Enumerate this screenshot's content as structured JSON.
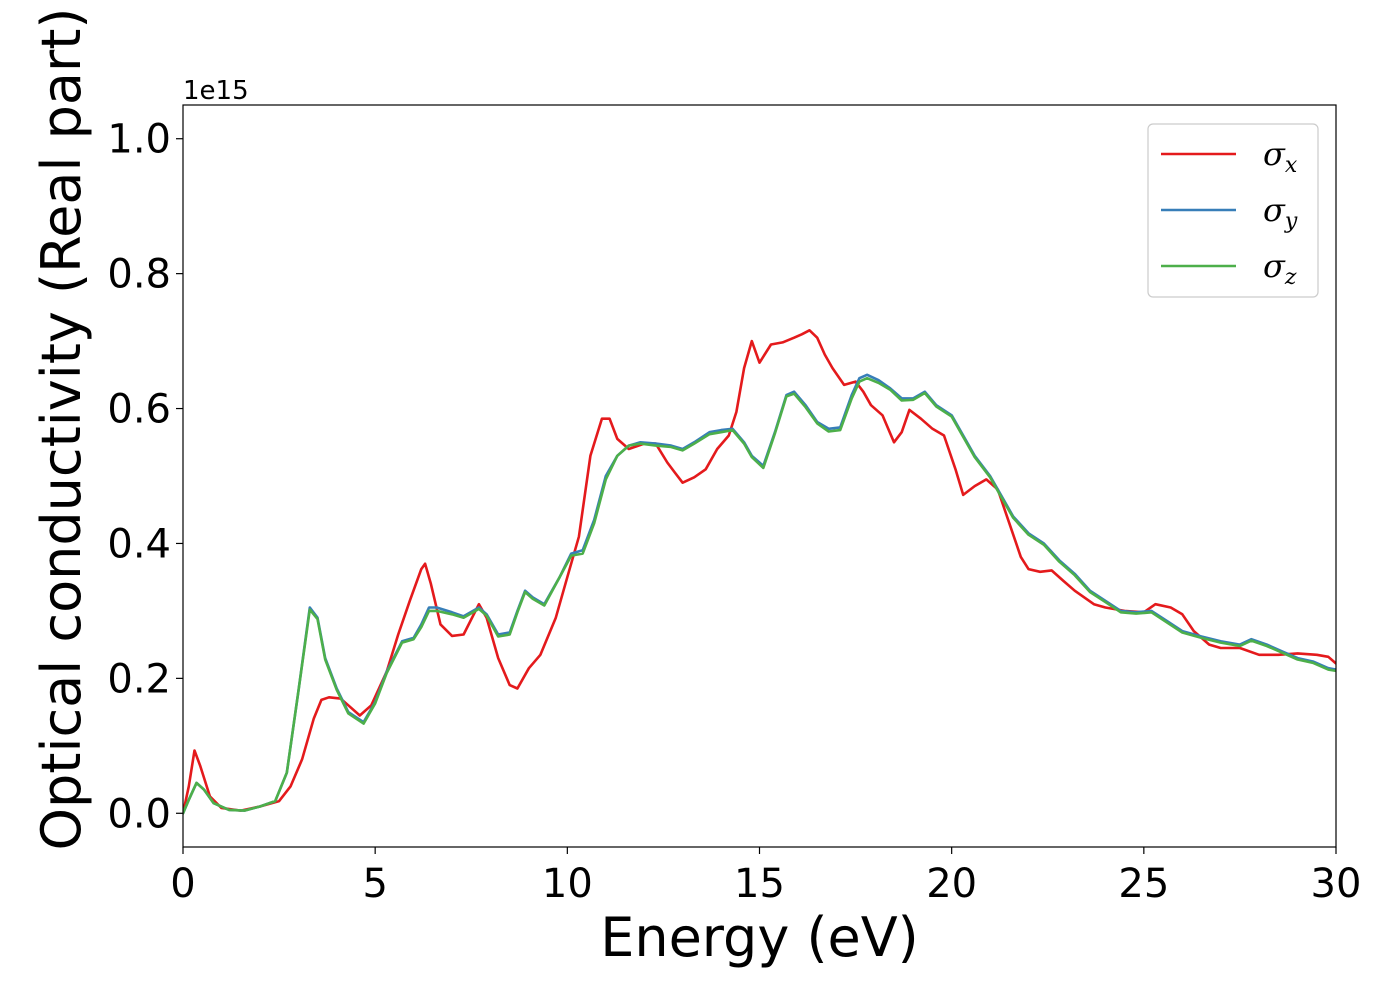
{
  "chart_data": {
    "type": "line",
    "xlabel": "Energy (eV)",
    "ylabel": "Optical conductivity (Real part)",
    "y_offset_label": "1e15",
    "xlim": [
      0,
      30
    ],
    "ylim": [
      -0.05,
      1.05
    ],
    "xticks": [
      0,
      5,
      10,
      15,
      20,
      25,
      30
    ],
    "yticks": [
      0.0,
      0.2,
      0.4,
      0.6,
      0.8,
      1.0
    ],
    "xtick_labels": [
      "0",
      "5",
      "10",
      "15",
      "20",
      "25",
      "30"
    ],
    "ytick_labels": [
      "0.0",
      "0.2",
      "0.4",
      "0.6",
      "0.8",
      "1.0"
    ],
    "grid": false,
    "legend_position": "top-right",
    "series": [
      {
        "name": "σ",
        "subscript": "x",
        "color": "#e41a1c",
        "points": [
          [
            0,
            0
          ],
          [
            0.15,
            0.04
          ],
          [
            0.3,
            0.093
          ],
          [
            0.45,
            0.07
          ],
          [
            0.7,
            0.025
          ],
          [
            1,
            0.008
          ],
          [
            1.5,
            0.004
          ],
          [
            2,
            0.01
          ],
          [
            2.5,
            0.018
          ],
          [
            2.8,
            0.04
          ],
          [
            3.1,
            0.08
          ],
          [
            3.4,
            0.14
          ],
          [
            3.6,
            0.168
          ],
          [
            3.8,
            0.172
          ],
          [
            4.1,
            0.17
          ],
          [
            4.3,
            0.16
          ],
          [
            4.6,
            0.145
          ],
          [
            4.9,
            0.16
          ],
          [
            5.3,
            0.21
          ],
          [
            5.6,
            0.265
          ],
          [
            5.9,
            0.315
          ],
          [
            6.2,
            0.362
          ],
          [
            6.3,
            0.37
          ],
          [
            6.45,
            0.34
          ],
          [
            6.7,
            0.28
          ],
          [
            7.0,
            0.263
          ],
          [
            7.3,
            0.265
          ],
          [
            7.7,
            0.31
          ],
          [
            7.9,
            0.29
          ],
          [
            8.2,
            0.23
          ],
          [
            8.5,
            0.19
          ],
          [
            8.7,
            0.185
          ],
          [
            9.0,
            0.215
          ],
          [
            9.3,
            0.235
          ],
          [
            9.7,
            0.29
          ],
          [
            10.0,
            0.35
          ],
          [
            10.3,
            0.41
          ],
          [
            10.6,
            0.53
          ],
          [
            10.9,
            0.585
          ],
          [
            11.1,
            0.585
          ],
          [
            11.3,
            0.555
          ],
          [
            11.6,
            0.54
          ],
          [
            12.0,
            0.548
          ],
          [
            12.3,
            0.548
          ],
          [
            12.6,
            0.52
          ],
          [
            12.8,
            0.505
          ],
          [
            13.0,
            0.49
          ],
          [
            13.3,
            0.498
          ],
          [
            13.6,
            0.51
          ],
          [
            13.9,
            0.54
          ],
          [
            14.2,
            0.56
          ],
          [
            14.4,
            0.595
          ],
          [
            14.6,
            0.66
          ],
          [
            14.8,
            0.7
          ],
          [
            15.0,
            0.668
          ],
          [
            15.3,
            0.695
          ],
          [
            15.6,
            0.698
          ],
          [
            15.9,
            0.705
          ],
          [
            16.1,
            0.71
          ],
          [
            16.3,
            0.716
          ],
          [
            16.5,
            0.705
          ],
          [
            16.7,
            0.68
          ],
          [
            16.9,
            0.66
          ],
          [
            17.2,
            0.635
          ],
          [
            17.5,
            0.64
          ],
          [
            17.7,
            0.625
          ],
          [
            17.9,
            0.605
          ],
          [
            18.2,
            0.59
          ],
          [
            18.5,
            0.55
          ],
          [
            18.7,
            0.565
          ],
          [
            18.9,
            0.598
          ],
          [
            19.2,
            0.585
          ],
          [
            19.5,
            0.57
          ],
          [
            19.8,
            0.56
          ],
          [
            20.1,
            0.51
          ],
          [
            20.3,
            0.472
          ],
          [
            20.6,
            0.485
          ],
          [
            20.9,
            0.495
          ],
          [
            21.2,
            0.48
          ],
          [
            21.5,
            0.43
          ],
          [
            21.8,
            0.38
          ],
          [
            22.0,
            0.362
          ],
          [
            22.3,
            0.358
          ],
          [
            22.6,
            0.36
          ],
          [
            22.9,
            0.345
          ],
          [
            23.2,
            0.33
          ],
          [
            23.7,
            0.31
          ],
          [
            24.0,
            0.305
          ],
          [
            24.5,
            0.3
          ],
          [
            25.0,
            0.298
          ],
          [
            25.3,
            0.31
          ],
          [
            25.7,
            0.305
          ],
          [
            26.0,
            0.295
          ],
          [
            26.3,
            0.27
          ],
          [
            26.7,
            0.25
          ],
          [
            27.0,
            0.245
          ],
          [
            27.5,
            0.245
          ],
          [
            28.0,
            0.235
          ],
          [
            28.5,
            0.235
          ],
          [
            29.0,
            0.237
          ],
          [
            29.5,
            0.235
          ],
          [
            29.8,
            0.232
          ],
          [
            30.0,
            0.222
          ]
        ]
      },
      {
        "name": "σ",
        "subscript": "y",
        "color": "#377eb8",
        "points": [
          [
            0,
            0
          ],
          [
            0.15,
            0.02
          ],
          [
            0.35,
            0.045
          ],
          [
            0.55,
            0.035
          ],
          [
            0.8,
            0.015
          ],
          [
            1.2,
            0.005
          ],
          [
            1.6,
            0.004
          ],
          [
            2.0,
            0.01
          ],
          [
            2.4,
            0.018
          ],
          [
            2.7,
            0.06
          ],
          [
            3.0,
            0.18
          ],
          [
            3.3,
            0.305
          ],
          [
            3.5,
            0.29
          ],
          [
            3.7,
            0.23
          ],
          [
            4.0,
            0.185
          ],
          [
            4.3,
            0.15
          ],
          [
            4.7,
            0.135
          ],
          [
            5.0,
            0.165
          ],
          [
            5.3,
            0.21
          ],
          [
            5.7,
            0.255
          ],
          [
            6.0,
            0.26
          ],
          [
            6.2,
            0.28
          ],
          [
            6.4,
            0.305
          ],
          [
            6.6,
            0.305
          ],
          [
            7.0,
            0.298
          ],
          [
            7.3,
            0.292
          ],
          [
            7.7,
            0.305
          ],
          [
            7.9,
            0.295
          ],
          [
            8.2,
            0.265
          ],
          [
            8.5,
            0.268
          ],
          [
            8.7,
            0.3
          ],
          [
            8.9,
            0.33
          ],
          [
            9.1,
            0.32
          ],
          [
            9.4,
            0.31
          ],
          [
            9.8,
            0.35
          ],
          [
            10.1,
            0.385
          ],
          [
            10.4,
            0.39
          ],
          [
            10.7,
            0.435
          ],
          [
            11.0,
            0.5
          ],
          [
            11.3,
            0.53
          ],
          [
            11.6,
            0.545
          ],
          [
            11.9,
            0.55
          ],
          [
            12.3,
            0.548
          ],
          [
            12.7,
            0.545
          ],
          [
            13.0,
            0.54
          ],
          [
            13.3,
            0.55
          ],
          [
            13.7,
            0.565
          ],
          [
            14.0,
            0.568
          ],
          [
            14.3,
            0.57
          ],
          [
            14.6,
            0.55
          ],
          [
            14.8,
            0.53
          ],
          [
            15.1,
            0.515
          ],
          [
            15.4,
            0.565
          ],
          [
            15.7,
            0.62
          ],
          [
            15.9,
            0.625
          ],
          [
            16.2,
            0.605
          ],
          [
            16.5,
            0.58
          ],
          [
            16.8,
            0.57
          ],
          [
            17.1,
            0.572
          ],
          [
            17.4,
            0.62
          ],
          [
            17.6,
            0.645
          ],
          [
            17.8,
            0.65
          ],
          [
            18.1,
            0.642
          ],
          [
            18.4,
            0.63
          ],
          [
            18.7,
            0.615
          ],
          [
            19.0,
            0.615
          ],
          [
            19.3,
            0.625
          ],
          [
            19.6,
            0.605
          ],
          [
            20.0,
            0.59
          ],
          [
            20.3,
            0.56
          ],
          [
            20.6,
            0.53
          ],
          [
            21.0,
            0.5
          ],
          [
            21.3,
            0.47
          ],
          [
            21.6,
            0.44
          ],
          [
            22.0,
            0.415
          ],
          [
            22.4,
            0.4
          ],
          [
            22.8,
            0.375
          ],
          [
            23.2,
            0.355
          ],
          [
            23.6,
            0.33
          ],
          [
            24.0,
            0.315
          ],
          [
            24.4,
            0.3
          ],
          [
            24.8,
            0.298
          ],
          [
            25.2,
            0.3
          ],
          [
            25.6,
            0.285
          ],
          [
            26.0,
            0.27
          ],
          [
            26.5,
            0.262
          ],
          [
            27.0,
            0.255
          ],
          [
            27.5,
            0.25
          ],
          [
            27.8,
            0.258
          ],
          [
            28.2,
            0.25
          ],
          [
            28.6,
            0.24
          ],
          [
            29.0,
            0.23
          ],
          [
            29.4,
            0.225
          ],
          [
            29.8,
            0.215
          ],
          [
            30.0,
            0.213
          ]
        ]
      },
      {
        "name": "σ",
        "subscript": "z",
        "color": "#4daf4a",
        "points": [
          [
            0,
            0
          ],
          [
            0.15,
            0.02
          ],
          [
            0.35,
            0.045
          ],
          [
            0.55,
            0.035
          ],
          [
            0.8,
            0.015
          ],
          [
            1.2,
            0.005
          ],
          [
            1.6,
            0.004
          ],
          [
            2.0,
            0.01
          ],
          [
            2.4,
            0.018
          ],
          [
            2.7,
            0.06
          ],
          [
            3.0,
            0.18
          ],
          [
            3.3,
            0.302
          ],
          [
            3.5,
            0.288
          ],
          [
            3.7,
            0.228
          ],
          [
            4.0,
            0.183
          ],
          [
            4.3,
            0.148
          ],
          [
            4.7,
            0.133
          ],
          [
            5.0,
            0.163
          ],
          [
            5.3,
            0.208
          ],
          [
            5.7,
            0.253
          ],
          [
            6.0,
            0.258
          ],
          [
            6.2,
            0.276
          ],
          [
            6.4,
            0.3
          ],
          [
            6.6,
            0.3
          ],
          [
            7.0,
            0.295
          ],
          [
            7.3,
            0.29
          ],
          [
            7.7,
            0.303
          ],
          [
            7.9,
            0.293
          ],
          [
            8.2,
            0.262
          ],
          [
            8.5,
            0.265
          ],
          [
            8.7,
            0.298
          ],
          [
            8.9,
            0.328
          ],
          [
            9.1,
            0.318
          ],
          [
            9.4,
            0.308
          ],
          [
            9.8,
            0.35
          ],
          [
            10.1,
            0.382
          ],
          [
            10.4,
            0.385
          ],
          [
            10.7,
            0.43
          ],
          [
            11.0,
            0.495
          ],
          [
            11.3,
            0.53
          ],
          [
            11.6,
            0.545
          ],
          [
            11.9,
            0.548
          ],
          [
            12.3,
            0.545
          ],
          [
            12.7,
            0.543
          ],
          [
            13.0,
            0.538
          ],
          [
            13.3,
            0.548
          ],
          [
            13.7,
            0.562
          ],
          [
            14.0,
            0.565
          ],
          [
            14.3,
            0.568
          ],
          [
            14.6,
            0.548
          ],
          [
            14.8,
            0.528
          ],
          [
            15.1,
            0.512
          ],
          [
            15.4,
            0.563
          ],
          [
            15.7,
            0.618
          ],
          [
            15.9,
            0.622
          ],
          [
            16.2,
            0.602
          ],
          [
            16.5,
            0.578
          ],
          [
            16.8,
            0.566
          ],
          [
            17.1,
            0.568
          ],
          [
            17.4,
            0.615
          ],
          [
            17.6,
            0.64
          ],
          [
            17.8,
            0.645
          ],
          [
            18.1,
            0.638
          ],
          [
            18.4,
            0.628
          ],
          [
            18.7,
            0.612
          ],
          [
            19.0,
            0.613
          ],
          [
            19.3,
            0.623
          ],
          [
            19.6,
            0.603
          ],
          [
            20.0,
            0.588
          ],
          [
            20.3,
            0.558
          ],
          [
            20.6,
            0.528
          ],
          [
            21.0,
            0.498
          ],
          [
            21.3,
            0.468
          ],
          [
            21.6,
            0.438
          ],
          [
            22.0,
            0.413
          ],
          [
            22.4,
            0.398
          ],
          [
            22.8,
            0.373
          ],
          [
            23.2,
            0.353
          ],
          [
            23.6,
            0.328
          ],
          [
            24.0,
            0.313
          ],
          [
            24.4,
            0.298
          ],
          [
            24.8,
            0.296
          ],
          [
            25.2,
            0.298
          ],
          [
            25.6,
            0.283
          ],
          [
            26.0,
            0.268
          ],
          [
            26.5,
            0.26
          ],
          [
            27.0,
            0.253
          ],
          [
            27.5,
            0.248
          ],
          [
            27.8,
            0.256
          ],
          [
            28.2,
            0.248
          ],
          [
            28.6,
            0.238
          ],
          [
            29.0,
            0.228
          ],
          [
            29.4,
            0.223
          ],
          [
            29.8,
            0.213
          ],
          [
            30.0,
            0.211
          ]
        ]
      }
    ]
  }
}
